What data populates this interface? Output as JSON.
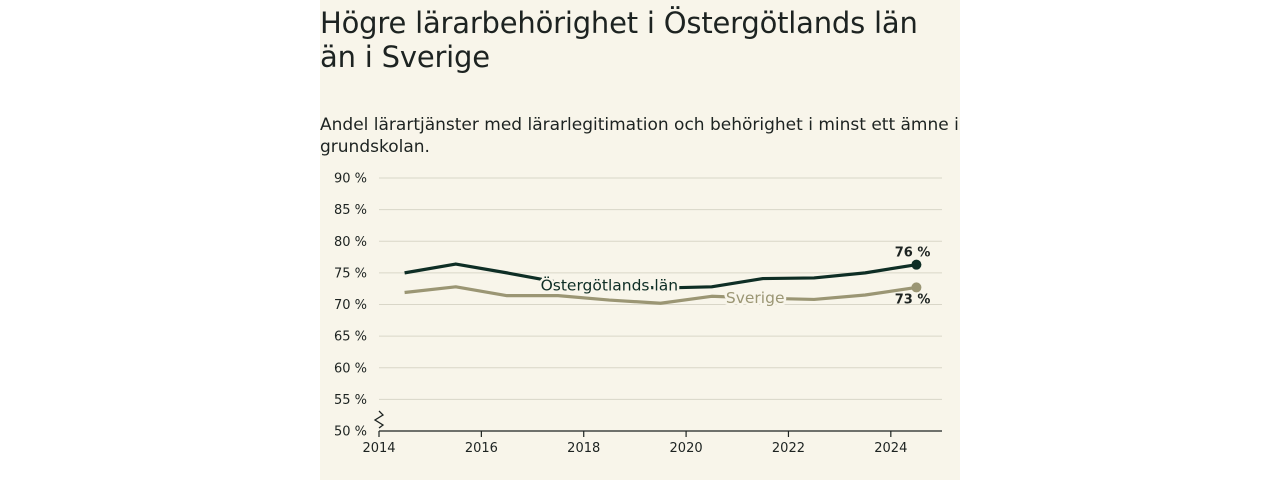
{
  "chart_data": {
    "type": "line",
    "title": "Högre lärarbehörighet i Östergötlands län än i Sverige",
    "subtitle": "Andel lärartjänster med lärarlegitimation och behörighet i minst ett ämne i grundskolan.",
    "xlim": [
      2014,
      2025
    ],
    "ylim": [
      50,
      90
    ],
    "x_ticks": [
      "2014",
      "2016",
      "2018",
      "2020",
      "2022",
      "2024"
    ],
    "y_ticks": [
      "50 %",
      "55 %",
      "60 %",
      "65 %",
      "70 %",
      "75 %",
      "80 %",
      "85 %",
      "90 %"
    ],
    "grid": true,
    "series": [
      {
        "name": "Östergötlands län",
        "color": "#0e2e25",
        "x": [
          2014.5,
          2015.5,
          2016.5,
          2017.5,
          2018.5,
          2019.5,
          2020.5,
          2021.5,
          2022.5,
          2023.5,
          2024.5
        ],
        "values": [
          75.0,
          76.4,
          75.0,
          73.5,
          73.0,
          72.6,
          72.8,
          74.1,
          74.2,
          75.0,
          76.3
        ],
        "end_label": "76 %"
      },
      {
        "name": "Sverige",
        "color": "#9b9674",
        "x": [
          2014.5,
          2015.5,
          2016.5,
          2017.5,
          2018.5,
          2019.5,
          2020.5,
          2021.5,
          2022.5,
          2023.5,
          2024.5
        ],
        "values": [
          71.9,
          72.8,
          71.4,
          71.4,
          70.7,
          70.2,
          71.3,
          71.0,
          70.8,
          71.5,
          72.7
        ],
        "end_label": "73 %"
      }
    ]
  }
}
